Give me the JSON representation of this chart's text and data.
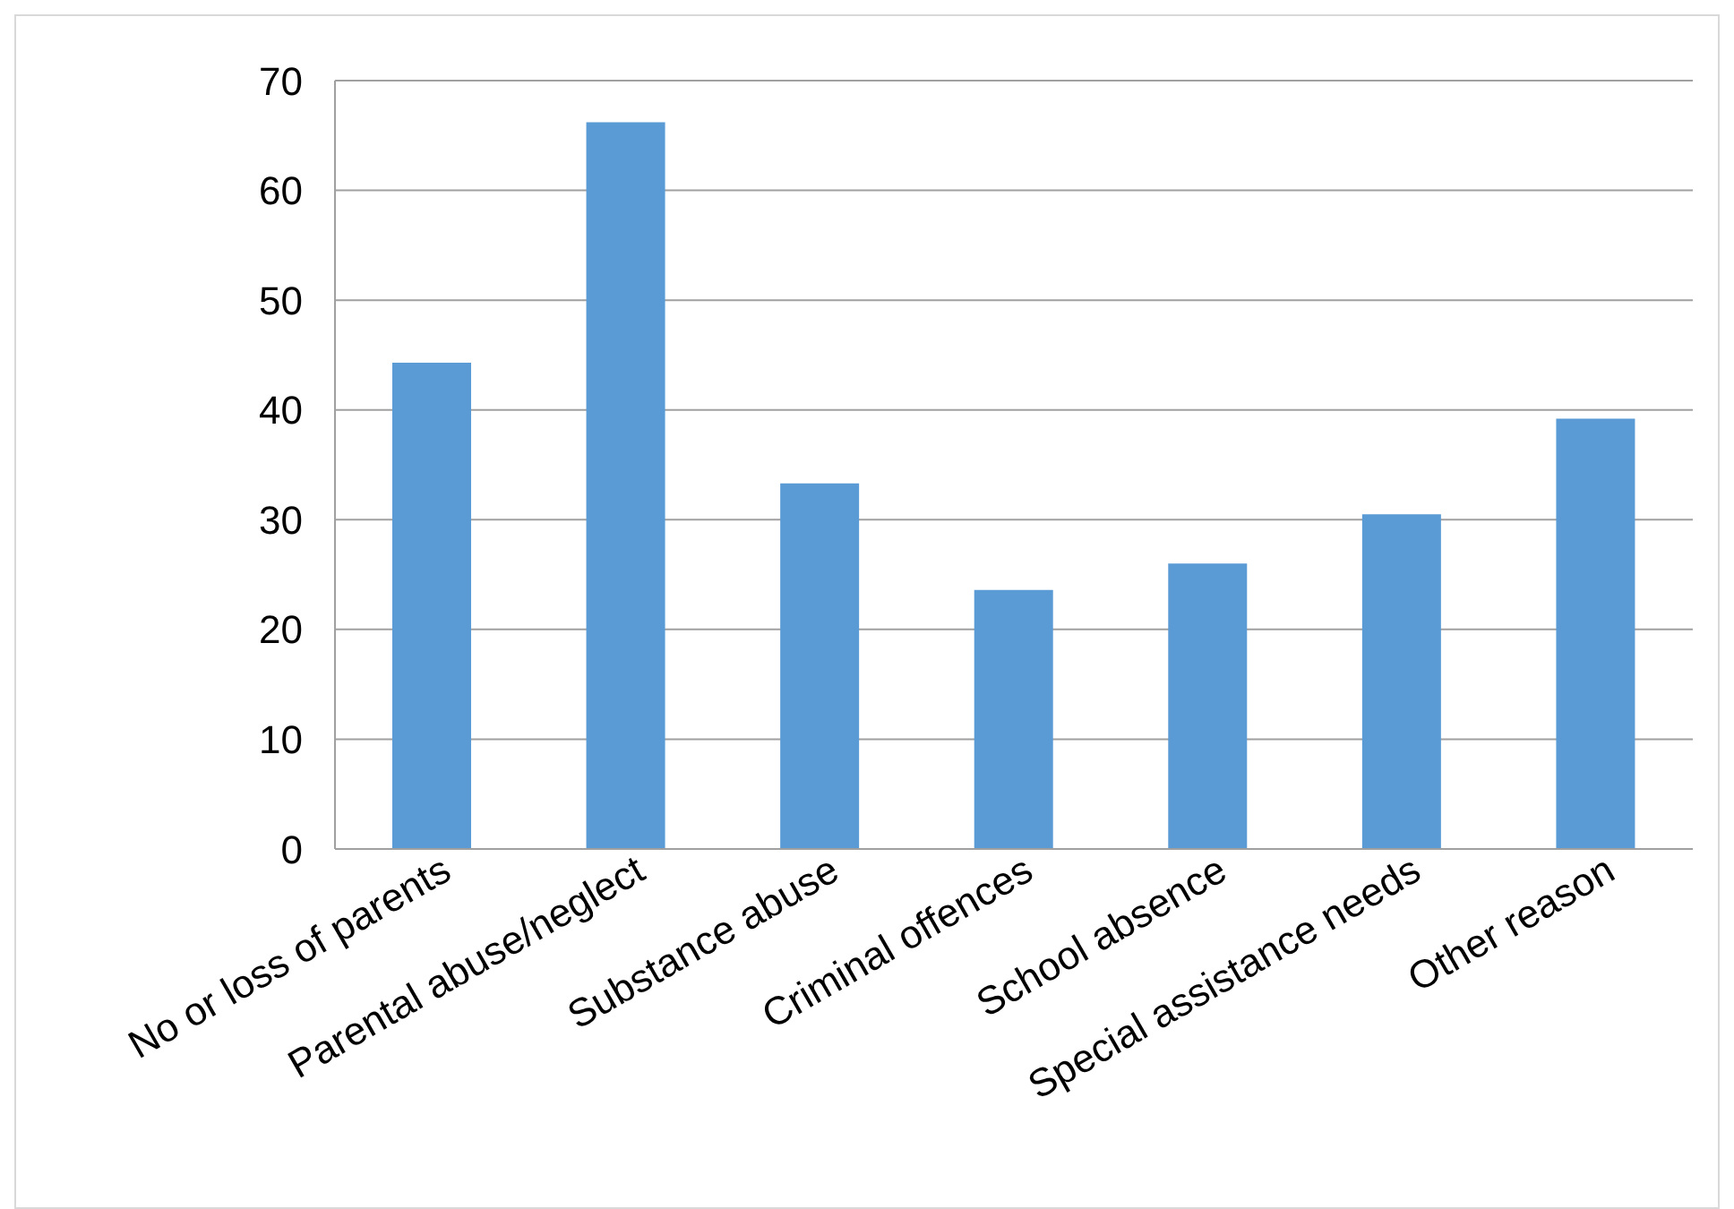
{
  "chart_data": {
    "type": "bar",
    "categories": [
      "No or loss of parents",
      "Parental abuse/neglect",
      "Substance abuse",
      "Criminal offences",
      "School absence",
      "Special assistance needs",
      "Other reason"
    ],
    "values": [
      44.3,
      66.2,
      33.3,
      23.6,
      26.0,
      30.5,
      39.2
    ],
    "color": "#5b9bd5",
    "ylim": [
      0,
      70
    ],
    "yticks": [
      0,
      10,
      20,
      30,
      40,
      50,
      60,
      70
    ],
    "grid": "y"
  }
}
